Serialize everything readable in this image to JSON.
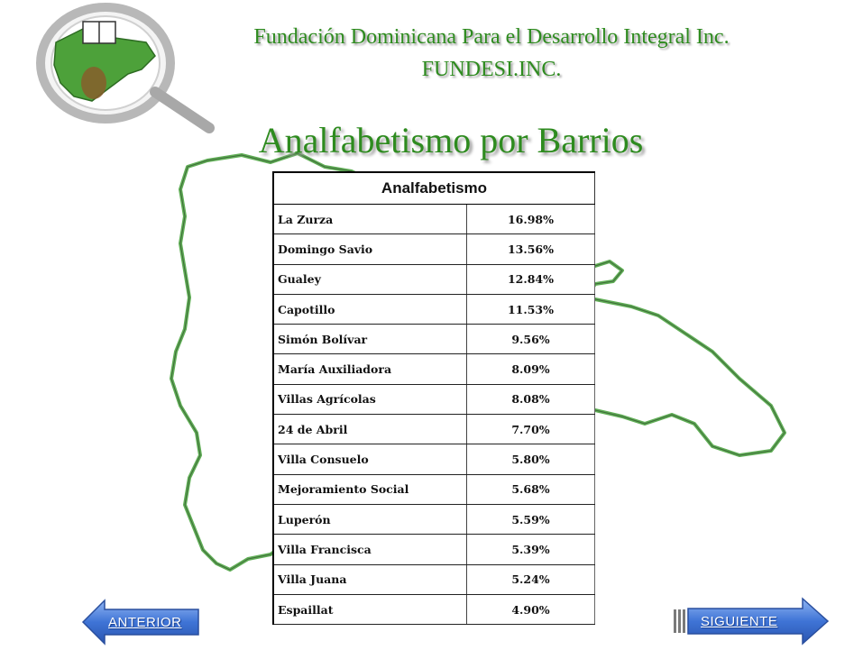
{
  "header": {
    "org_name": "Fundación Dominicana Para el Desarrollo Integral Inc.",
    "org_short": "FUNDESI.INC."
  },
  "title": "Analfabetismo por Barrios",
  "table": {
    "header": "Analfabetismo",
    "rows": [
      {
        "barrio": "La Zurza",
        "value": "16.98%"
      },
      {
        "barrio": "Domingo Savio",
        "value": "13.56%"
      },
      {
        "barrio": "Gualey",
        "value": "12.84%"
      },
      {
        "barrio": "Capotillo",
        "value": "11.53%"
      },
      {
        "barrio": "Simón Bolívar",
        "value": "9.56%"
      },
      {
        "barrio": "María Auxiliadora",
        "value": "8.09%"
      },
      {
        "barrio": "Villas Agrícolas",
        "value": "8.08%"
      },
      {
        "barrio": "24 de Abril",
        "value": "7.70%"
      },
      {
        "barrio": "Villa Consuelo",
        "value": "5.80%"
      },
      {
        "barrio": "Mejoramiento Social",
        "value": "5.68%"
      },
      {
        "barrio": "Luperón",
        "value": "5.59%"
      },
      {
        "barrio": "Villa Francisca",
        "value": "5.39%"
      },
      {
        "barrio": "Villa Juana",
        "value": "5.24%"
      },
      {
        "barrio": "Espaillat",
        "value": "4.90%"
      }
    ]
  },
  "nav": {
    "prev_label": "ANTERIOR",
    "next_label": "SIGUIENTE"
  },
  "colors": {
    "title_green": "#2e8b1f",
    "map_outline": "#5fae55",
    "button_blue": "#3f74d6"
  },
  "icons": {
    "logo": "magnifier-map-logo-icon",
    "background": "dominican-republic-map-outline"
  }
}
